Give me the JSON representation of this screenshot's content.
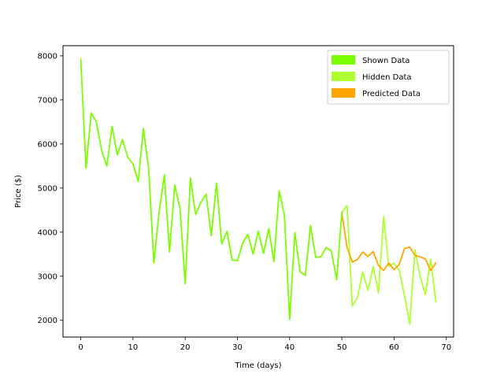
{
  "chart_data": {
    "type": "line",
    "xlabel": "Time (days)",
    "ylabel": "Price ($)",
    "xlim": [
      -3.4,
      71.4
    ],
    "ylim": [
      1620,
      8230
    ],
    "x_ticks": [
      0,
      10,
      20,
      30,
      40,
      50,
      60,
      70
    ],
    "y_ticks": [
      2000,
      3000,
      4000,
      5000,
      6000,
      7000,
      8000
    ],
    "legend_position": "top-right",
    "series": [
      {
        "name": "Shown Data",
        "color": "#7cfc00",
        "x": [
          0,
          1,
          2,
          3,
          4,
          5,
          6,
          7,
          8,
          9,
          10,
          11,
          12,
          13,
          14,
          15,
          16,
          17,
          18,
          19,
          20,
          21,
          22,
          23,
          24,
          25,
          26,
          27,
          28,
          29,
          30,
          31,
          32,
          33,
          34,
          35,
          36,
          37,
          38,
          39,
          40,
          41,
          42,
          43,
          44,
          45,
          46,
          47,
          48,
          49,
          50
        ],
        "y": [
          7920,
          5450,
          6700,
          6500,
          5850,
          5500,
          6400,
          5750,
          6100,
          5700,
          5550,
          5150,
          6350,
          5450,
          3300,
          4450,
          5300,
          3550,
          5070,
          4550,
          2830,
          5230,
          4400,
          4670,
          4860,
          3920,
          5110,
          3730,
          4020,
          3370,
          3350,
          3750,
          3950,
          3500,
          4020,
          3520,
          4080,
          3330,
          4940,
          4380,
          2020,
          3990,
          3100,
          3020,
          4150,
          3430,
          3440,
          3650,
          3570,
          2920,
          4450
        ]
      },
      {
        "name": "Hidden Data",
        "color": "#adff2f",
        "x": [
          50,
          51,
          52,
          53,
          54,
          55,
          56,
          57,
          58,
          59,
          60,
          61,
          62,
          63,
          64,
          65,
          66,
          67,
          68
        ],
        "y": [
          4450,
          4600,
          2330,
          2520,
          3090,
          2680,
          3220,
          2620,
          4350,
          3220,
          3300,
          3130,
          2560,
          1910,
          3600,
          3000,
          2580,
          3390,
          2420
        ]
      },
      {
        "name": "Predicted Data",
        "color": "#ffa500",
        "x": [
          50,
          51,
          52,
          53,
          54,
          55,
          56,
          57,
          58,
          59,
          60,
          61,
          62,
          63,
          64,
          65,
          66,
          67,
          68
        ],
        "y": [
          4420,
          3650,
          3320,
          3380,
          3550,
          3450,
          3560,
          3250,
          3130,
          3300,
          3150,
          3270,
          3630,
          3660,
          3470,
          3440,
          3390,
          3130,
          3300
        ]
      }
    ]
  }
}
